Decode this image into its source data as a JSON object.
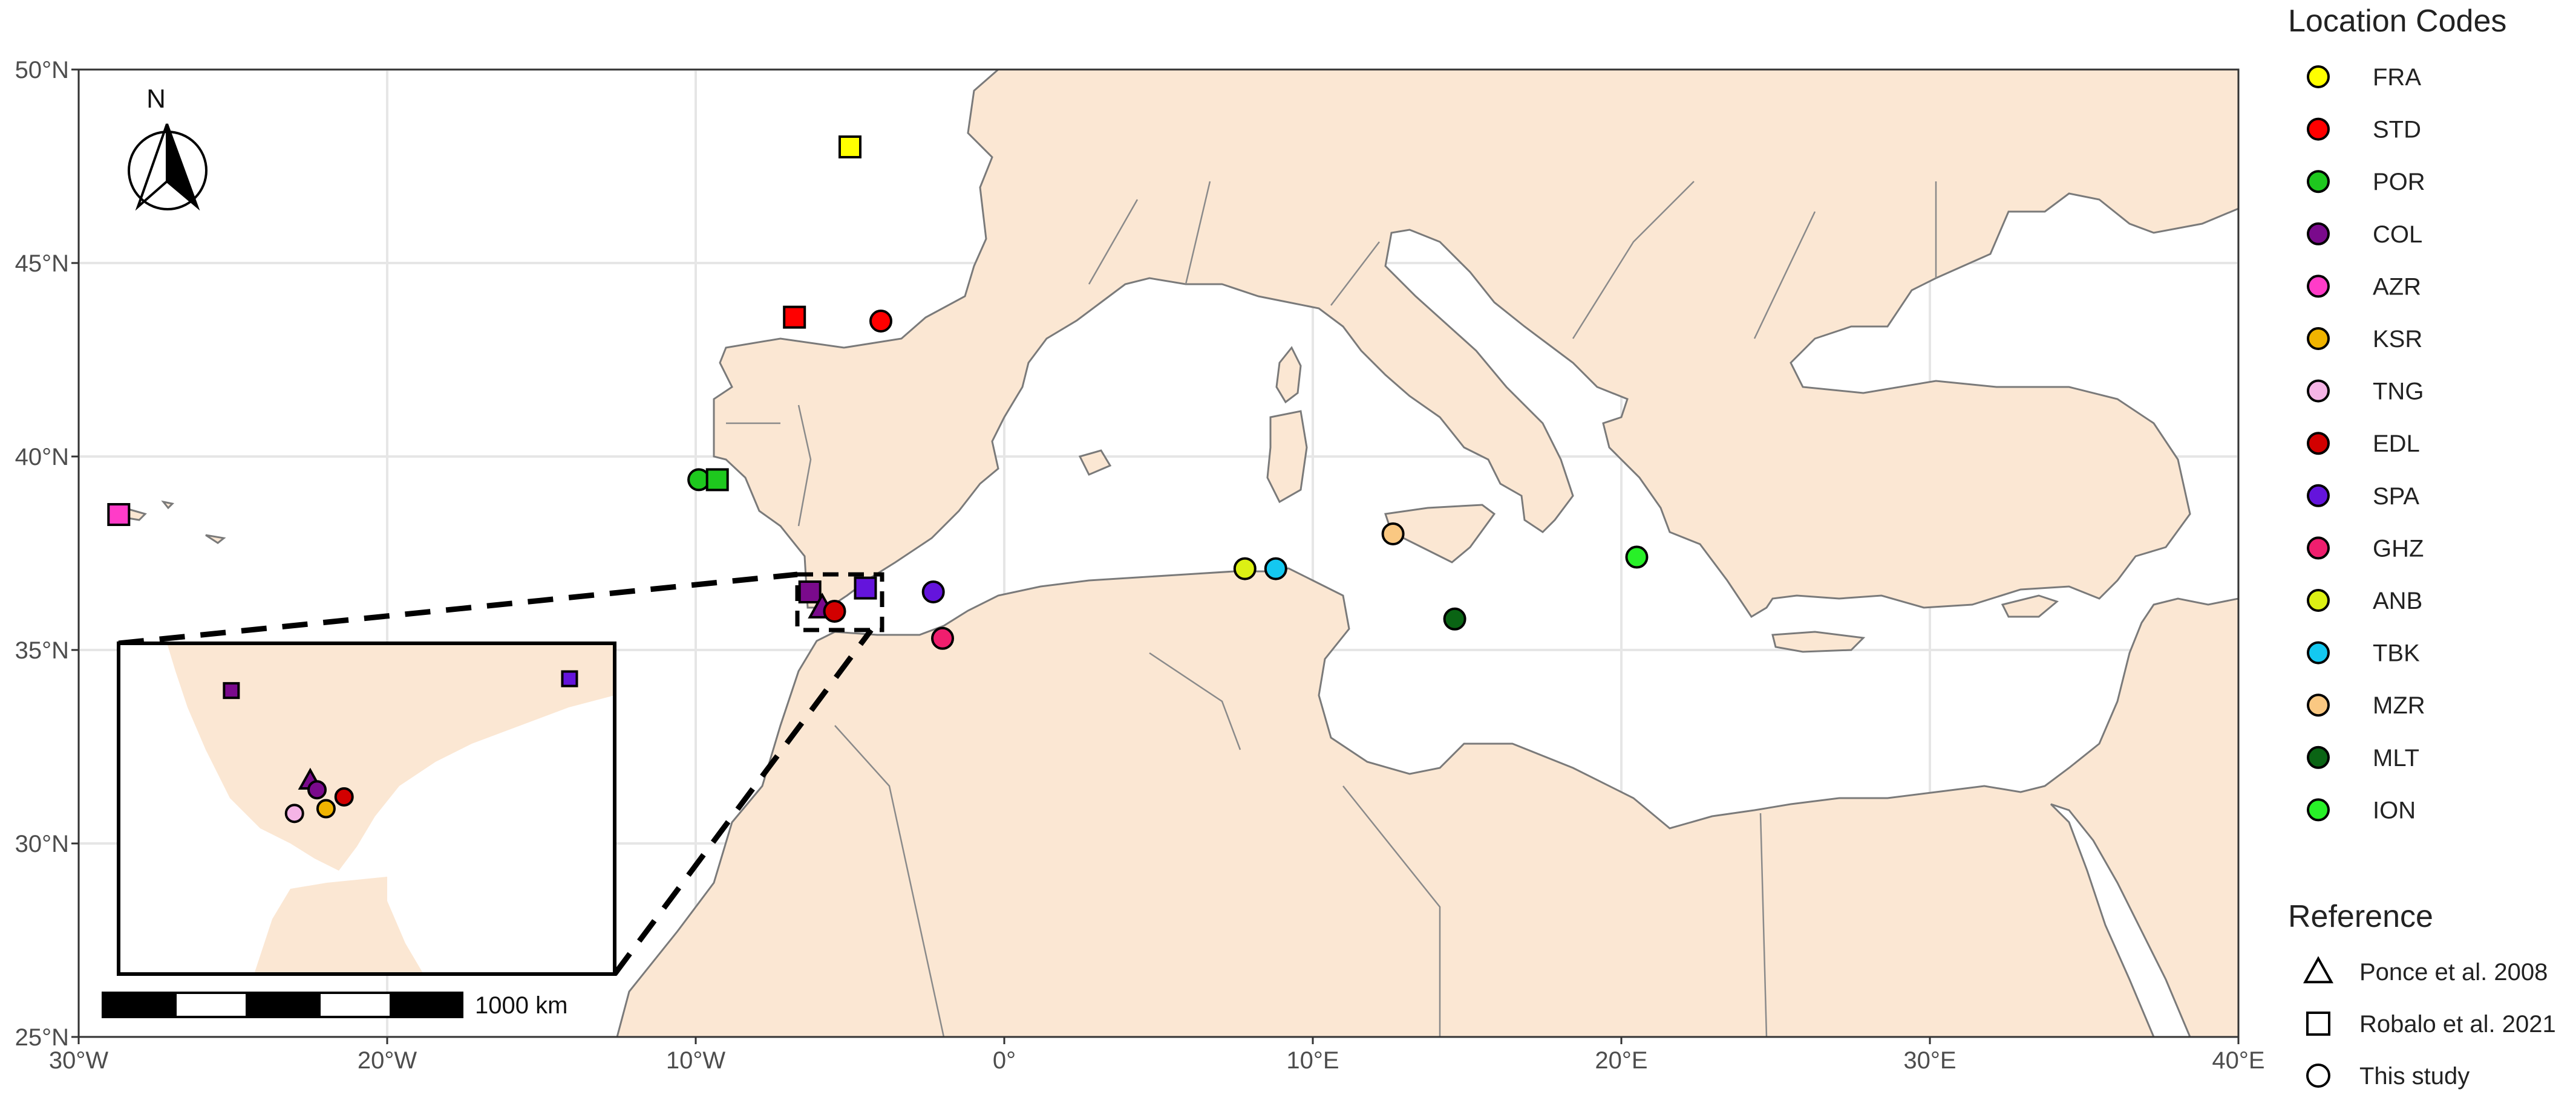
{
  "map": {
    "lon_range": [
      -30,
      40
    ],
    "lat_range": [
      25,
      50
    ],
    "lon_ticks": [
      -30,
      -20,
      -10,
      0,
      10,
      20,
      30,
      40
    ],
    "lat_ticks": [
      25,
      30,
      35,
      40,
      45,
      50
    ],
    "lon_tick_labels": [
      "30°W",
      "20°W",
      "10°W",
      "0°",
      "10°E",
      "20°E",
      "30°E",
      "40°E"
    ],
    "lat_tick_labels": [
      "25°N",
      "30°N",
      "35°N",
      "40°N",
      "45°N",
      "50°N"
    ],
    "land_color": "#fbe7d3",
    "sea_color": "#ffffff",
    "border_color": "#7a7a7a",
    "grid": true
  },
  "north_arrow": {
    "label": "N"
  },
  "scale_bar": {
    "label": "1000 km"
  },
  "legend_locations": {
    "title": "Location Codes",
    "items": [
      {
        "code": "FRA",
        "color": "#ffff00"
      },
      {
        "code": "STD",
        "color": "#ff0000"
      },
      {
        "code": "POR",
        "color": "#1ec81e"
      },
      {
        "code": "COL",
        "color": "#7a0a8c"
      },
      {
        "code": "AZR",
        "color": "#ff3cc8"
      },
      {
        "code": "KSR",
        "color": "#f0b400"
      },
      {
        "code": "TNG",
        "color": "#f5b4e6"
      },
      {
        "code": "EDL",
        "color": "#d20000"
      },
      {
        "code": "SPA",
        "color": "#6414dc"
      },
      {
        "code": "GHZ",
        "color": "#f01e6e"
      },
      {
        "code": "ANB",
        "color": "#dcf014"
      },
      {
        "code": "TBK",
        "color": "#14c8f0"
      },
      {
        "code": "MZR",
        "color": "#fac882"
      },
      {
        "code": "MLT",
        "color": "#0a6414"
      },
      {
        "code": "ION",
        "color": "#28f028"
      }
    ]
  },
  "legend_reference": {
    "title": "Reference",
    "items": [
      {
        "label": "Ponce et al. 2008",
        "shape": "triangle"
      },
      {
        "label": "Robalo et al. 2021",
        "shape": "square"
      },
      {
        "label": "This study",
        "shape": "circle"
      }
    ]
  },
  "sites": [
    {
      "code": "FRA",
      "shape": "square",
      "lon": -5.0,
      "lat": 48.0
    },
    {
      "code": "STD",
      "shape": "square",
      "lon": -6.8,
      "lat": 43.6
    },
    {
      "code": "STD",
      "shape": "circle",
      "lon": -4.0,
      "lat": 43.5
    },
    {
      "code": "POR",
      "shape": "circle",
      "lon": -9.9,
      "lat": 39.4
    },
    {
      "code": "POR",
      "shape": "square",
      "lon": -9.3,
      "lat": 39.4
    },
    {
      "code": "AZR",
      "shape": "square",
      "lon": -28.7,
      "lat": 38.5
    },
    {
      "code": "COL",
      "shape": "square",
      "lon": -6.3,
      "lat": 36.5
    },
    {
      "code": "SPA",
      "shape": "square",
      "lon": -4.5,
      "lat": 36.6
    },
    {
      "code": "SPA",
      "shape": "circle",
      "lon": -2.3,
      "lat": 36.5
    },
    {
      "code": "COL",
      "shape": "triangle",
      "lon": -5.9,
      "lat": 36.1
    },
    {
      "code": "EDL",
      "shape": "circle",
      "lon": -5.5,
      "lat": 36.0
    },
    {
      "code": "GHZ",
      "shape": "circle",
      "lon": -2.0,
      "lat": 35.3
    },
    {
      "code": "ANB",
      "shape": "circle",
      "lon": 7.8,
      "lat": 37.1
    },
    {
      "code": "TBK",
      "shape": "circle",
      "lon": 8.8,
      "lat": 37.1
    },
    {
      "code": "MZR",
      "shape": "circle",
      "lon": 12.6,
      "lat": 38.0
    },
    {
      "code": "MLT",
      "shape": "circle",
      "lon": 14.6,
      "lat": 35.8
    },
    {
      "code": "ION",
      "shape": "circle",
      "lon": 20.5,
      "lat": 37.4
    }
  ],
  "inset": {
    "lon_range": [
      -6.8,
      -4.6
    ],
    "lat_range": [
      35.3,
      36.7
    ],
    "sites": [
      {
        "code": "COL",
        "shape": "square",
        "lon": -6.3,
        "lat": 36.5
      },
      {
        "code": "SPA",
        "shape": "square",
        "lon": -4.8,
        "lat": 36.55
      },
      {
        "code": "COL",
        "shape": "triangle",
        "lon": -5.95,
        "lat": 36.12
      },
      {
        "code": "COL",
        "shape": "circle",
        "lon": -5.92,
        "lat": 36.08
      },
      {
        "code": "EDL",
        "shape": "circle",
        "lon": -5.8,
        "lat": 36.05
      },
      {
        "code": "KSR",
        "shape": "circle",
        "lon": -5.88,
        "lat": 36.0
      },
      {
        "code": "TNG",
        "shape": "circle",
        "lon": -6.02,
        "lat": 35.98
      }
    ]
  }
}
